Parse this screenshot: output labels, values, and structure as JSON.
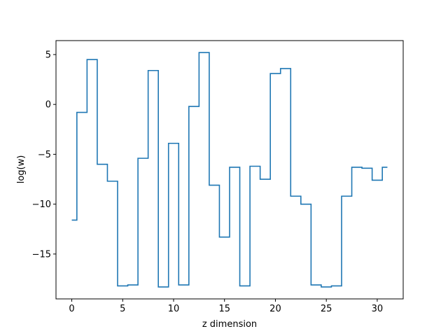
{
  "chart_data": {
    "type": "line",
    "drawstyle": "steps-mid",
    "title": "",
    "xlabel": "z dimension",
    "ylabel": "log(w)",
    "xlim": [
      -1.55,
      32.55
    ],
    "ylim": [
      -19.5,
      6.4
    ],
    "xticks": [
      0,
      5,
      10,
      15,
      20,
      25,
      30
    ],
    "yticks": [
      -15,
      -10,
      -5,
      0,
      5
    ],
    "ytick_labels": [
      "−15",
      "−10",
      "−5",
      "0",
      "5"
    ],
    "grid": false,
    "line_color": "#1f77b4",
    "series": [
      {
        "x": [
          0,
          1,
          2,
          3,
          4,
          5,
          6,
          7,
          8,
          9,
          10,
          11,
          12,
          13,
          14,
          15,
          16,
          17,
          18,
          19,
          20,
          21,
          22,
          23,
          24,
          25,
          26,
          27,
          28,
          29,
          30,
          31
        ],
        "values": [
          -11.6,
          -0.8,
          4.5,
          -6.0,
          -7.7,
          -18.2,
          -18.1,
          -5.4,
          3.4,
          -18.3,
          -3.9,
          -18.1,
          -0.2,
          5.2,
          -8.1,
          -13.3,
          -6.3,
          -18.2,
          -6.2,
          -7.5,
          3.1,
          3.6,
          -9.2,
          -10.0,
          -18.1,
          -18.3,
          -18.2,
          -9.2,
          -6.3,
          -6.4,
          -7.6,
          -6.3
        ]
      }
    ]
  }
}
